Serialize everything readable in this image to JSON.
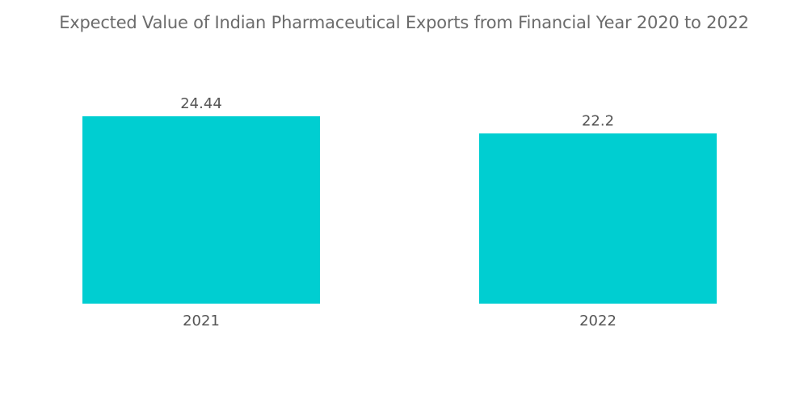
{
  "chart_data": {
    "type": "bar",
    "title": "Expected Value of Indian Pharmaceutical Exports from Financial Year 2020 to 2022",
    "categories": [
      "2021",
      "2022"
    ],
    "values": [
      24.44,
      22.2
    ],
    "value_labels": [
      "24.44",
      "22.2"
    ],
    "xlabel": "",
    "ylabel": "",
    "ylim": [
      0,
      24.44
    ],
    "grid": false,
    "legend": "none",
    "bar_color": "#00ced1"
  }
}
